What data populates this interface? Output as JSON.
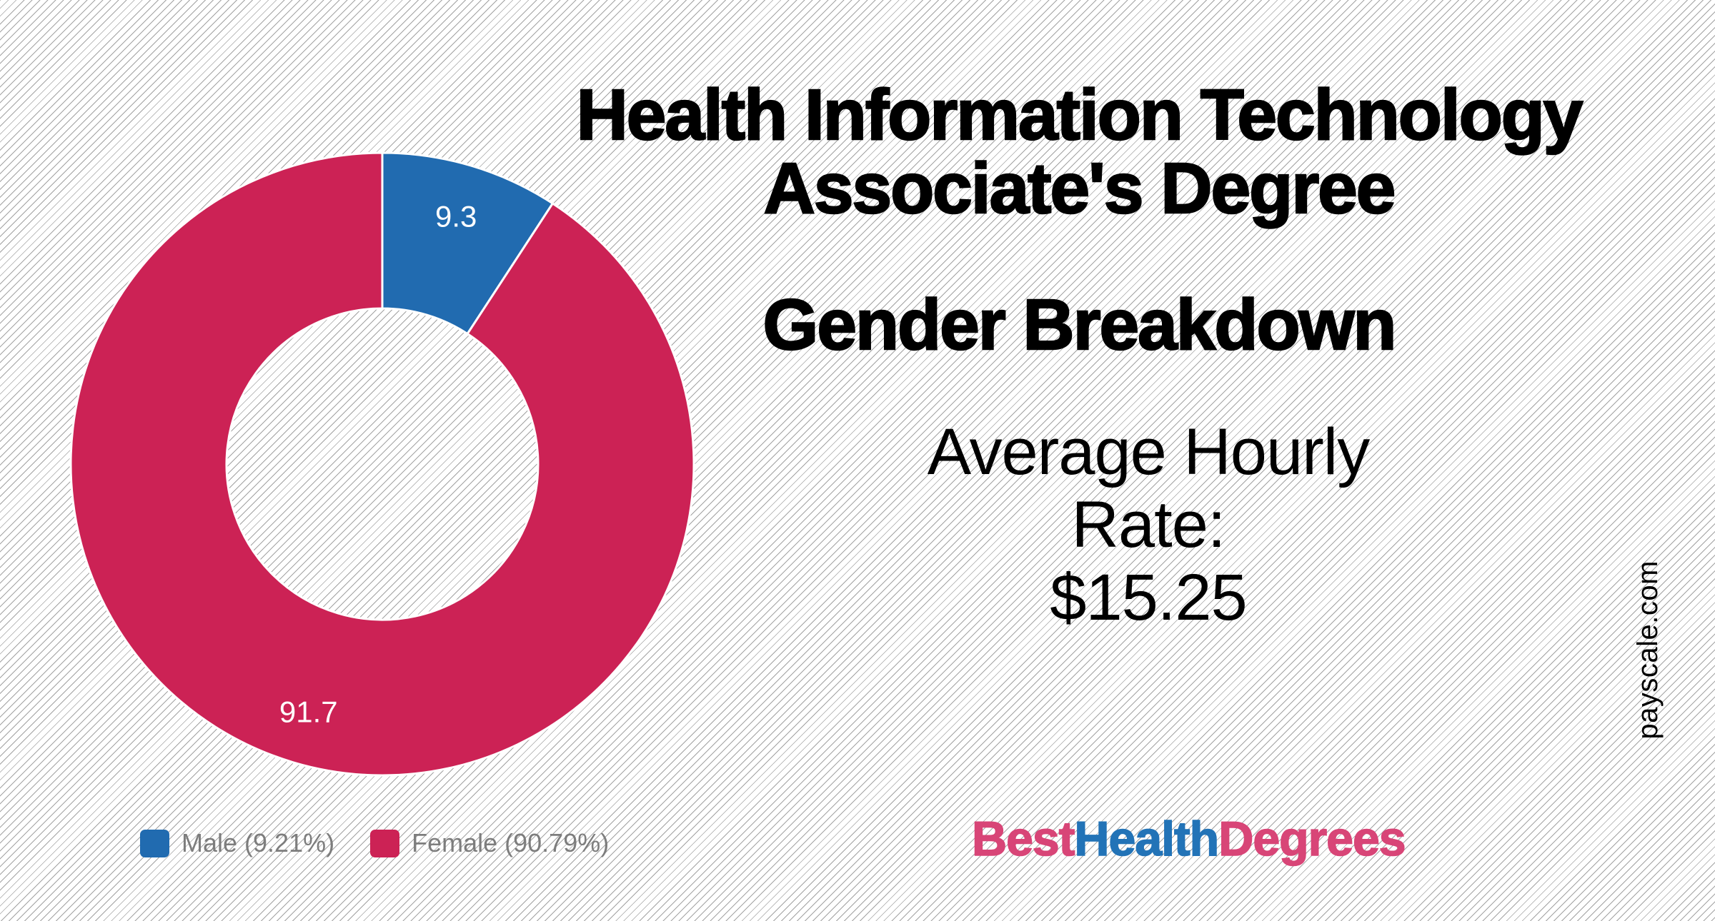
{
  "canvas": {
    "background": "#ffffff",
    "hatch_line_color": "#a3a3a3",
    "text_color": "#000000"
  },
  "title": {
    "line1": "Health Information Technology",
    "line2": "Associate's Degree"
  },
  "section_heading": "Gender Breakdown",
  "stat": {
    "line1": "Average Hourly",
    "line2": "Rate:",
    "line3": "$15.25"
  },
  "watermark": "payscale.com",
  "brand": {
    "best": "Best",
    "health": "Health",
    "degrees": "Degrees",
    "pink": "#D84577",
    "blue": "#2273B7"
  },
  "legend": {
    "text_color": "#7d7d7d",
    "items": [
      {
        "label": "Male (9.21%)",
        "color": "#216BB0"
      },
      {
        "label": "Female (90.79%)",
        "color": "#CC2255"
      }
    ]
  },
  "chart_data": {
    "type": "pie",
    "subtype": "donut",
    "title": "Health Information Technology Associate's Degree — Gender Breakdown",
    "categories": [
      "Male",
      "Female"
    ],
    "values": [
      9.3,
      91.7
    ],
    "percent_of_total": [
      9.21,
      90.79
    ],
    "slice_labels": [
      "9.3",
      "91.7"
    ],
    "colors": [
      "#216BB0",
      "#CC2255"
    ],
    "slice_label_color": "#ffffff",
    "slice_separator_color": "#ffffff",
    "start_angle_deg": 0,
    "direction": "clockwise",
    "inner_radius_ratio": 0.5,
    "label_radius_ratio": 0.83,
    "legend_position": "bottom-left",
    "grid": false
  }
}
